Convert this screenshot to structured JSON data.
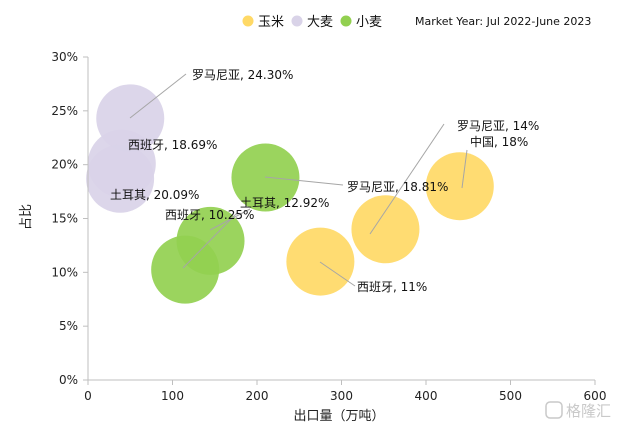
{
  "chart_data": {
    "type": "bubble",
    "xlabel": "出口量（万吨）",
    "ylabel": "占比",
    "xlim": [
      0,
      600
    ],
    "ylim": [
      0,
      30
    ],
    "x_ticks": [
      "0",
      "100",
      "200",
      "300",
      "400",
      "500",
      "600"
    ],
    "y_ticks": [
      "0%",
      "5%",
      "10%",
      "15%",
      "20%",
      "25%",
      "30%"
    ],
    "note": "Market Year: Jul 2022-June 2023",
    "legend_position": "top-right",
    "grid": false,
    "series": [
      {
        "name": "玉米",
        "color": "#ffd966",
        "points": [
          {
            "x": 352,
            "y": 14.0,
            "label": "罗马尼亚, 14%"
          },
          {
            "x": 440,
            "y": 18.0,
            "label": "中国, 18%"
          },
          {
            "x": 275,
            "y": 11.0,
            "label": "西班牙, 11%"
          }
        ]
      },
      {
        "name": "大麦",
        "color": "#d9d3e8",
        "points": [
          {
            "x": 50,
            "y": 24.3,
            "label": "罗马尼亚, 24.30%"
          },
          {
            "x": 40,
            "y": 20.09,
            "label": "土耳其, 20.09%"
          },
          {
            "x": 38,
            "y": 18.69,
            "label": "西班牙, 18.69%"
          }
        ]
      },
      {
        "name": "小麦",
        "color": "#92d050",
        "points": [
          {
            "x": 210,
            "y": 18.81,
            "label": "罗马尼亚, 18.81%"
          },
          {
            "x": 145,
            "y": 12.92,
            "label": "土耳其, 12.92%"
          },
          {
            "x": 115,
            "y": 10.25,
            "label": "西班牙, 10.25%"
          }
        ]
      }
    ]
  },
  "watermark": "格隆汇"
}
